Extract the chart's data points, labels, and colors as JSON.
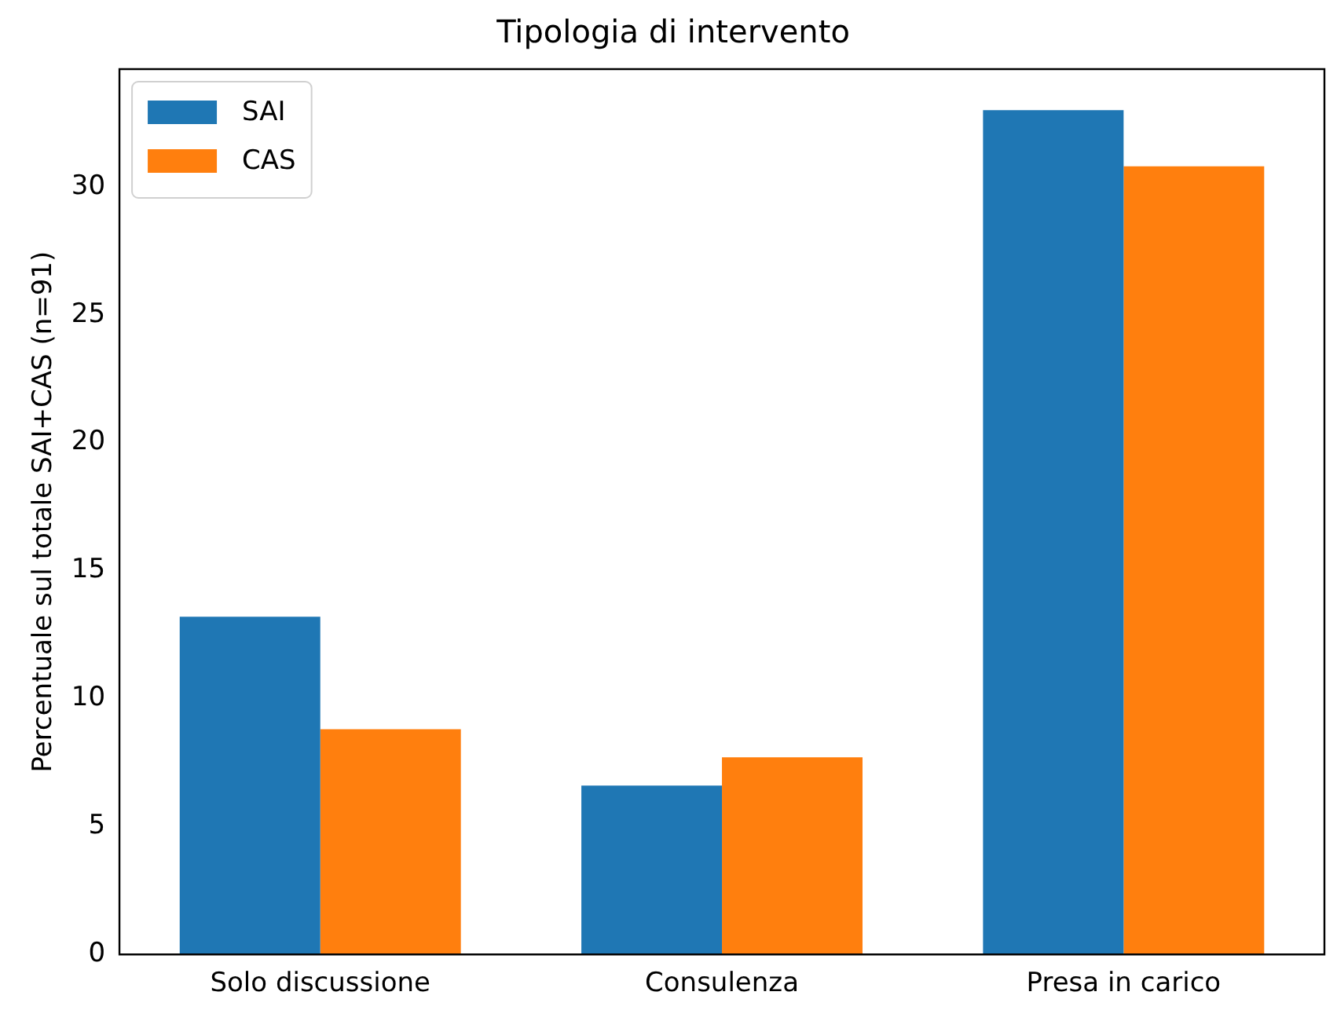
{
  "chart_data": {
    "type": "bar",
    "title": "Tipologia di intervento",
    "ylabel": "Percentuale sul totale SAI+CAS (n=91)",
    "categories": [
      "Solo discussione",
      "Consulenza",
      "Presa in carico"
    ],
    "series": [
      {
        "name": "SAI",
        "color": "#1f77b4",
        "values": [
          13.2,
          6.6,
          33.0
        ]
      },
      {
        "name": "CAS",
        "color": "#ff7f0e",
        "values": [
          8.8,
          7.7,
          30.8
        ]
      }
    ],
    "ylim": [
      0,
      34.6
    ],
    "yticks": [
      0,
      5,
      10,
      15,
      20,
      25,
      30
    ],
    "grid": false,
    "legend": "top left"
  }
}
